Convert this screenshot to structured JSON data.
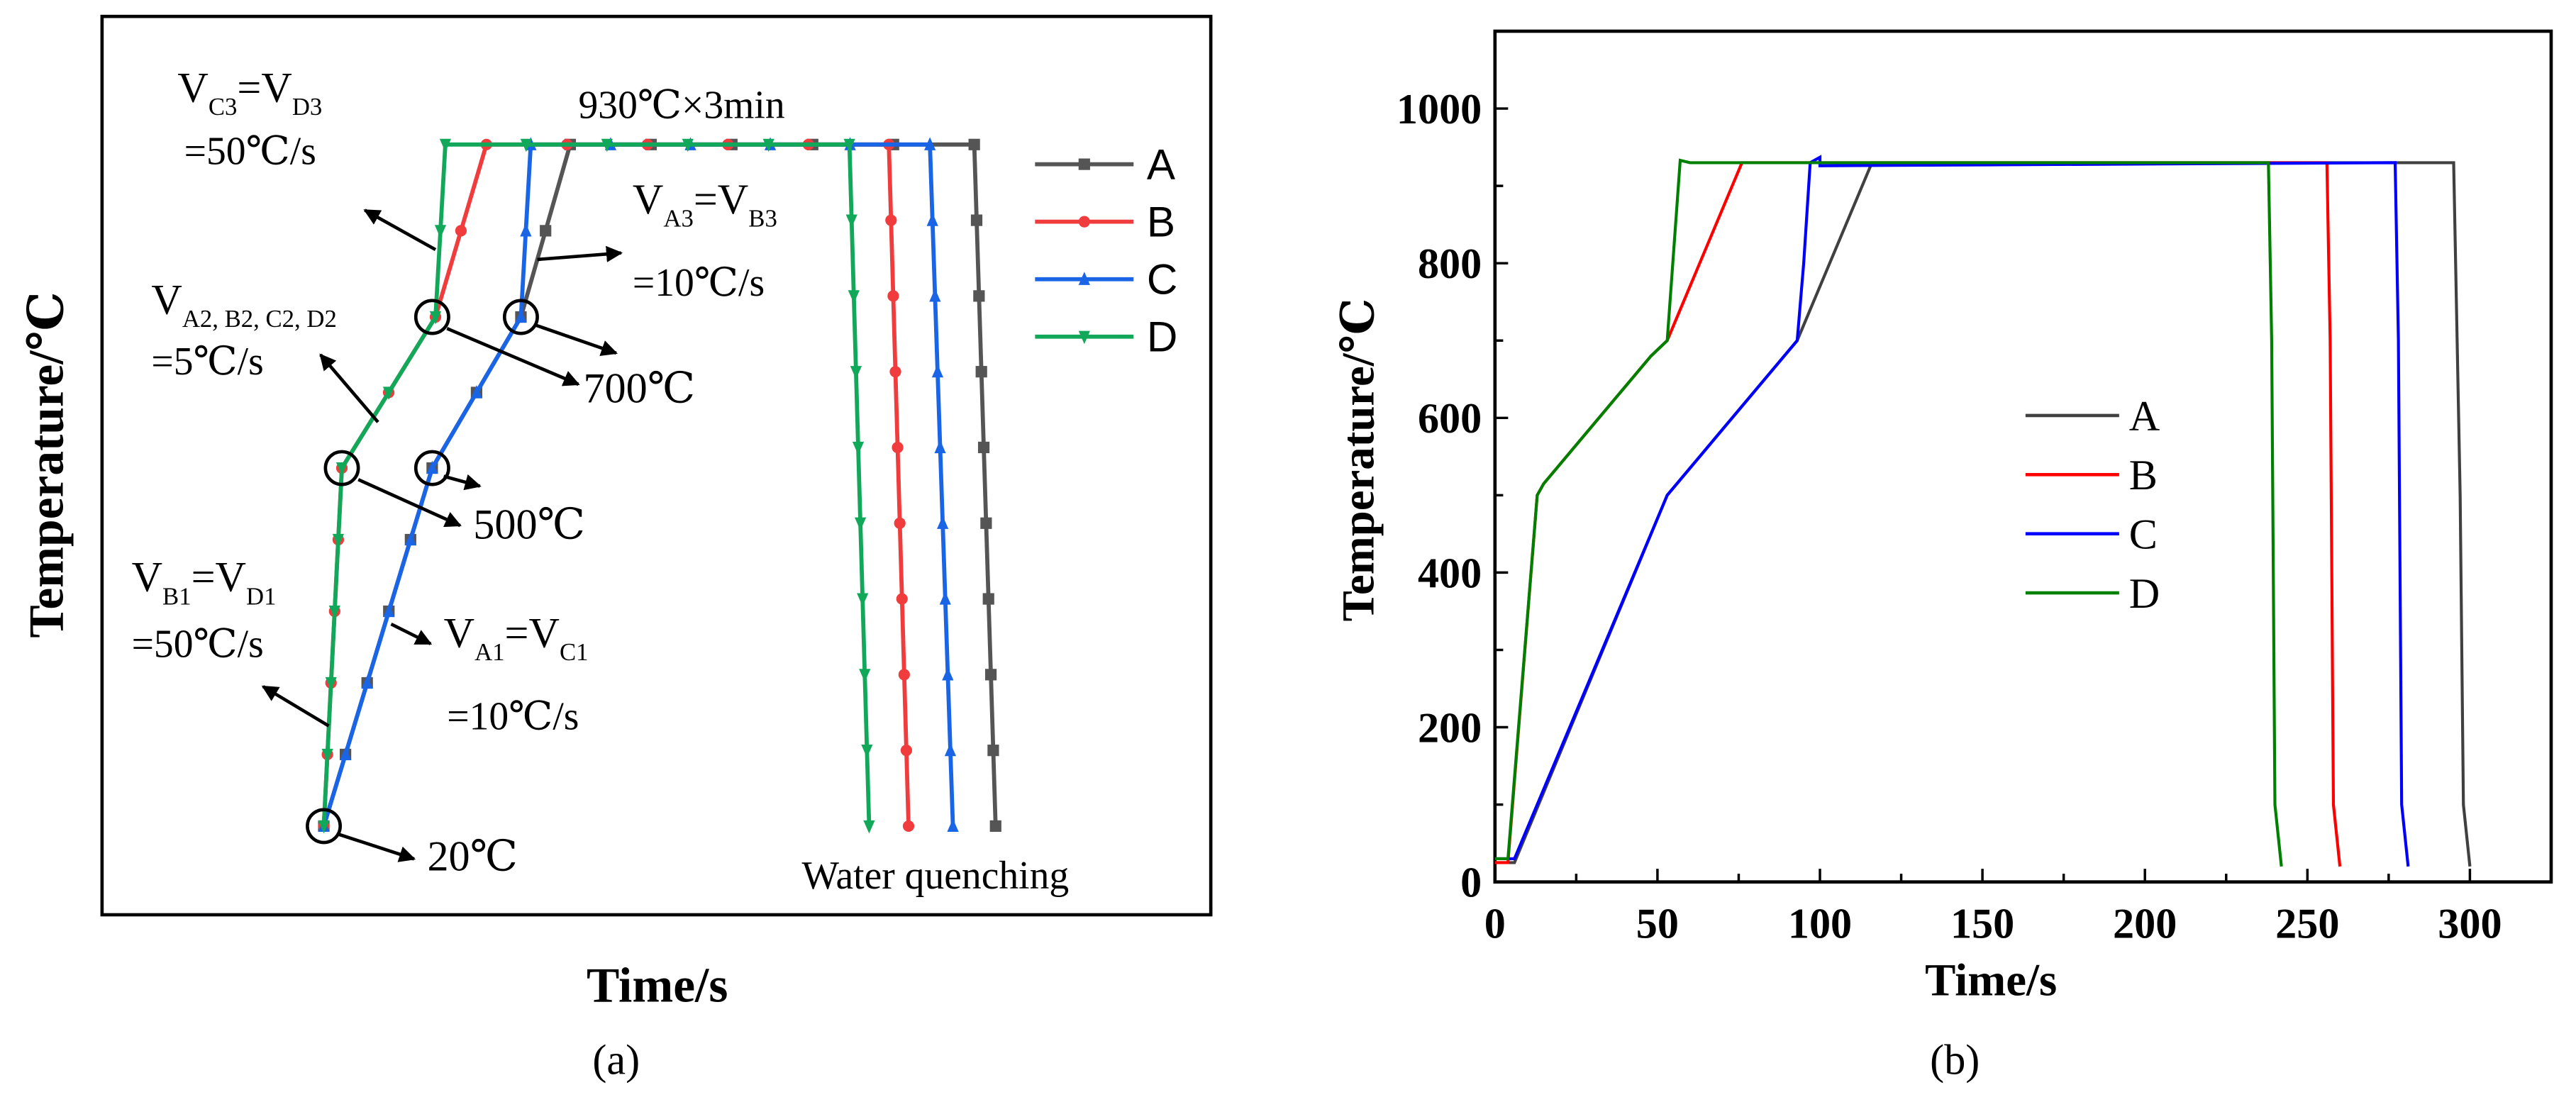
{
  "panel_a": {
    "label": "(a)",
    "xlabel": "Time/s",
    "ylabel": "Temperature/℃",
    "hold_label": "930℃×3min",
    "quench_label": "Water quenching",
    "legend": [
      "A",
      "B",
      "C",
      "D"
    ],
    "colors": {
      "A": "#555555",
      "B": "#f03c3c",
      "C": "#1a64e6",
      "D": "#12a85a"
    },
    "annotations": {
      "v3_cd": [
        {
          "t": "V"
        },
        {
          "s": "C3"
        },
        {
          "t": "=V"
        },
        {
          "s": "D3"
        }
      ],
      "v3_cd_rate": "=50℃/s",
      "v3_ab": [
        {
          "t": "V"
        },
        {
          "s": "A3"
        },
        {
          "t": "=V"
        },
        {
          "s": "B3"
        }
      ],
      "v3_ab_rate": "=10℃/s",
      "v2_all": [
        {
          "t": "V"
        },
        {
          "s": "A2, B2, C2, D2"
        }
      ],
      "v2_all_rate": "=5℃/s",
      "v1_bd": [
        {
          "t": "V"
        },
        {
          "s": "B1"
        },
        {
          "t": "=V"
        },
        {
          "s": "D1"
        }
      ],
      "v1_bd_rate": "=50℃/s",
      "v1_ac": [
        {
          "t": "V"
        },
        {
          "s": "A1"
        },
        {
          "t": "=V"
        },
        {
          "s": "C1"
        }
      ],
      "v1_ac_rate": "=10℃/s",
      "t700": "700℃",
      "t500": "500℃",
      "t20": "20℃"
    }
  },
  "chart_data": {
    "type": "line",
    "title": "",
    "panel_label": "(b)",
    "xlabel": "Time/s",
    "ylabel": "Temperature/℃",
    "xlim": [
      0,
      325
    ],
    "ylim": [
      0,
      1100
    ],
    "xticks": [
      0,
      50,
      100,
      150,
      200,
      250,
      300
    ],
    "yticks": [
      0,
      200,
      400,
      600,
      800,
      1000
    ],
    "grid": false,
    "legend_position": "center",
    "series": [
      {
        "name": "A",
        "color": "#404040",
        "points": [
          [
            0,
            25
          ],
          [
            6,
            25
          ],
          [
            53,
            500
          ],
          [
            93,
            700
          ],
          [
            116,
            930
          ],
          [
            295,
            930
          ],
          [
            297,
            500
          ],
          [
            298,
            100
          ],
          [
            300,
            20
          ]
        ]
      },
      {
        "name": "B",
        "color": "#ff0000",
        "points": [
          [
            0,
            25
          ],
          [
            4,
            25
          ],
          [
            13,
            500
          ],
          [
            15,
            515
          ],
          [
            48,
            680
          ],
          [
            53,
            700
          ],
          [
            76,
            930
          ],
          [
            256,
            930
          ],
          [
            257,
            700
          ],
          [
            258,
            100
          ],
          [
            260,
            20
          ]
        ]
      },
      {
        "name": "C",
        "color": "#0000ff",
        "points": [
          [
            0,
            30
          ],
          [
            6,
            30
          ],
          [
            53,
            500
          ],
          [
            93,
            700
          ],
          [
            95,
            800
          ],
          [
            97,
            930
          ],
          [
            100,
            937
          ],
          [
            100,
            926
          ],
          [
            277,
            930
          ],
          [
            278,
            700
          ],
          [
            279,
            100
          ],
          [
            281,
            20
          ]
        ]
      },
      {
        "name": "D",
        "color": "#008000",
        "points": [
          [
            0,
            30
          ],
          [
            4,
            30
          ],
          [
            13,
            500
          ],
          [
            15,
            515
          ],
          [
            48,
            680
          ],
          [
            53,
            700
          ],
          [
            57,
            933
          ],
          [
            60,
            930
          ],
          [
            238,
            930
          ],
          [
            239,
            700
          ],
          [
            240,
            100
          ],
          [
            242,
            20
          ]
        ]
      }
    ]
  }
}
